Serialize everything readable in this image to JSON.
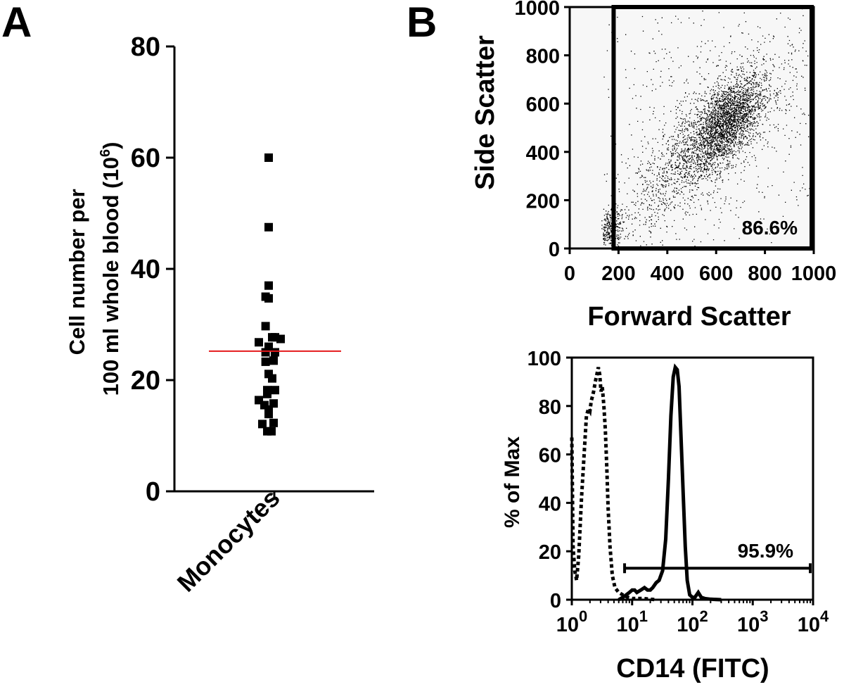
{
  "panel_labels": [
    "A",
    "B"
  ],
  "chart_data": [
    {
      "id": "monocyte_counts",
      "type": "scatter",
      "title": "",
      "xlabel": "",
      "ylabel_lines": [
        "Cell number per",
        "100 ml whole blood (10",
        "6",
        ")"
      ],
      "categories": [
        "Monocytes"
      ],
      "ylim": [
        0,
        80
      ],
      "yticks": [
        0,
        20,
        40,
        60,
        80
      ],
      "points": [
        {
          "x": -0.4,
          "y": 60.0
        },
        {
          "x": -0.4,
          "y": 47.5
        },
        {
          "x": -0.4,
          "y": 37.0
        },
        {
          "x": -0.62,
          "y": 35.0
        },
        {
          "x": -0.4,
          "y": 34.7
        },
        {
          "x": -0.62,
          "y": 29.7
        },
        {
          "x": -0.15,
          "y": 27.7
        },
        {
          "x": 0.05,
          "y": 27.7
        },
        {
          "x": 0.45,
          "y": 27.4
        },
        {
          "x": -1.1,
          "y": 26.8
        },
        {
          "x": -0.4,
          "y": 26.0
        },
        {
          "x": -0.62,
          "y": 25.0
        },
        {
          "x": 0.05,
          "y": 25.0
        },
        {
          "x": -0.62,
          "y": 23.3
        },
        {
          "x": -0.05,
          "y": 23.5
        },
        {
          "x": -0.4,
          "y": 21.1
        },
        {
          "x": -0.15,
          "y": 20.3
        },
        {
          "x": -0.5,
          "y": 18.2
        },
        {
          "x": 0.05,
          "y": 18.2
        },
        {
          "x": -0.5,
          "y": 17.5
        },
        {
          "x": -1.1,
          "y": 16.4
        },
        {
          "x": -0.7,
          "y": 15.5
        },
        {
          "x": -0.05,
          "y": 15.8
        },
        {
          "x": -0.4,
          "y": 14.7
        },
        {
          "x": -0.4,
          "y": 13.9
        },
        {
          "x": -0.85,
          "y": 12.1
        },
        {
          "x": -0.05,
          "y": 12.3
        },
        {
          "x": -0.5,
          "y": 10.8
        },
        {
          "x": -0.2,
          "y": 10.8
        }
      ],
      "mean_line": {
        "y": 25.2,
        "color": "#e41a1c"
      },
      "marker": "square",
      "grid": false
    },
    {
      "id": "fsc_ssc_dotplot",
      "type": "scatter",
      "title": "",
      "xlabel": "Forward Scatter",
      "ylabel": "Side Scatter",
      "xlim": [
        0,
        1000
      ],
      "ylim": [
        0,
        1000
      ],
      "xticks": [
        0,
        200,
        400,
        600,
        800,
        1000
      ],
      "yticks": [
        0,
        200,
        400,
        600,
        800,
        1000
      ],
      "distribution": {
        "clusters": [
          {
            "cx": 640,
            "cy": 520,
            "sx": 75,
            "sy": 95,
            "rho": 0.55,
            "n": 2000
          },
          {
            "cx": 540,
            "cy": 420,
            "sx": 150,
            "sy": 170,
            "rho": 0.8,
            "n": 1500
          },
          {
            "cx": 170,
            "cy": 80,
            "sx": 25,
            "sy": 45,
            "rho": 0.3,
            "n": 330
          },
          {
            "cx": 620,
            "cy": 520,
            "sx": 260,
            "sy": 270,
            "rho": 0.4,
            "n": 600
          }
        ],
        "background_uniform": 220
      },
      "gate": {
        "x_from": 180,
        "x_to": 1000,
        "label": "86.6%"
      },
      "grid": false
    },
    {
      "id": "cd14_histogram",
      "type": "line",
      "title": "",
      "xlabel": "CD14 (FITC)",
      "ylabel": "% of Max",
      "xscale": "log",
      "xlim": [
        1,
        10000
      ],
      "xtick_labels": [
        {
          "base": "10",
          "exp": "0"
        },
        {
          "base": "10",
          "exp": "1"
        },
        {
          "base": "10",
          "exp": "2"
        },
        {
          "base": "10",
          "exp": "3"
        },
        {
          "base": "10",
          "exp": "4"
        }
      ],
      "ylim": [
        0,
        100
      ],
      "yticks": [
        0,
        20,
        40,
        60,
        80,
        100
      ],
      "series": [
        {
          "style": "dotted",
          "x": [
            1.0,
            1.05,
            1.12,
            1.2,
            1.3,
            1.45,
            1.6,
            1.75,
            1.9,
            2.0,
            2.1,
            2.2,
            2.3,
            2.45,
            2.6,
            2.75,
            2.9,
            3.05,
            3.2,
            3.4,
            3.6,
            3.8,
            4.0,
            4.3,
            4.7,
            5.2,
            6.0,
            7.0,
            8.5,
            10,
            15,
            25
          ],
          "y": [
            67,
            22,
            12,
            8,
            18,
            42,
            60,
            76,
            79,
            78,
            82,
            84,
            86,
            90,
            93,
            96,
            93,
            86,
            88,
            80,
            70,
            55,
            38,
            22,
            10,
            5,
            3,
            2,
            1,
            0.5,
            0.5,
            0
          ]
        },
        {
          "style": "solid",
          "x": [
            6,
            7,
            8,
            9,
            10,
            11,
            12,
            14,
            16,
            18,
            20,
            22,
            25,
            28,
            32,
            36,
            40,
            44,
            48,
            52,
            56,
            60,
            64,
            70,
            76,
            82,
            90,
            100,
            110,
            125,
            140,
            160,
            200,
            300
          ],
          "y": [
            0,
            1,
            2,
            3,
            4,
            4,
            3,
            4,
            5,
            4,
            4,
            5,
            7,
            8,
            12,
            25,
            50,
            76,
            92,
            96,
            95,
            88,
            70,
            45,
            22,
            8,
            2,
            1,
            1,
            3,
            1,
            0.5,
            0.2,
            0
          ]
        }
      ],
      "gate": {
        "x_from": 7.5,
        "x_to": 10000,
        "y": 13,
        "label": "95.9%"
      },
      "grid": false
    }
  ]
}
